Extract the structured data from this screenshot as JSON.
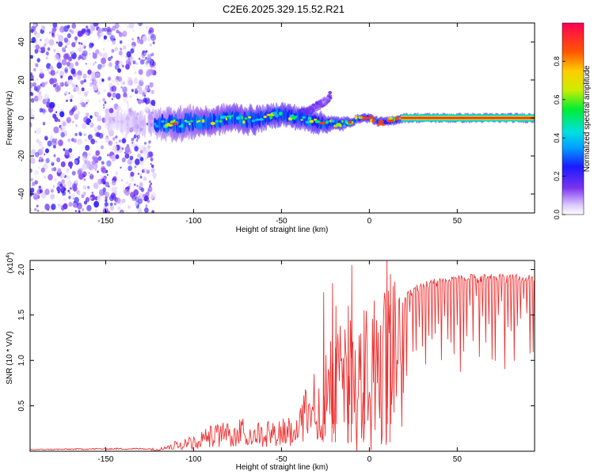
{
  "title": "C2E6.2025.329.15.52.R21",
  "chart_data": [
    {
      "type": "heatmap",
      "title": "C2E6.2025.329.15.52.R21",
      "xlabel": "Height of straight line (km)",
      "ylabel": "Frequency (Hz)",
      "xlim": [
        -193,
        94
      ],
      "ylim": [
        -50,
        50
      ],
      "x_ticks": [
        -150,
        -100,
        -50,
        0,
        50
      ],
      "x_tick_labels": [
        "-150",
        "-100",
        "-50",
        "0",
        "50"
      ],
      "y_ticks": [
        -40,
        -20,
        0,
        20,
        40
      ],
      "y_tick_labels": [
        "-40",
        "-20",
        "0",
        "20",
        "40"
      ],
      "noise_region_x": [
        -193,
        -122
      ],
      "trace": {
        "x": [
          -150,
          -140,
          -130,
          -122,
          -115,
          -110,
          -105,
          -100,
          -95,
          -90,
          -85,
          -80,
          -75,
          -70,
          -65,
          -60,
          -55,
          -50,
          -45,
          -40,
          -35,
          -30,
          -25,
          -20,
          -15,
          -10,
          -5,
          0,
          5,
          10,
          15,
          20,
          30,
          40,
          50,
          60,
          70,
          80,
          94
        ],
        "freq": [
          -2,
          -2,
          -3,
          -3,
          -3,
          -3,
          -3,
          -2,
          -2,
          -2,
          -1,
          0,
          0,
          -1,
          -1,
          0,
          1,
          2,
          1,
          0,
          -1,
          -2,
          -3,
          -3,
          -3,
          -2,
          0,
          0,
          -2,
          -2,
          -1,
          0,
          0,
          0,
          0,
          0,
          0,
          0,
          0
        ],
        "halfwidth": [
          4,
          5,
          5,
          6,
          7,
          7,
          7,
          7,
          6,
          6,
          6,
          6,
          6,
          6,
          6,
          5,
          5,
          5,
          5,
          5,
          5,
          5,
          4,
          3,
          3,
          2,
          2,
          2,
          2,
          2,
          2,
          2,
          2,
          2,
          2,
          2,
          2,
          2,
          2
        ],
        "amplitude": [
          0.1,
          0.15,
          0.2,
          0.25,
          0.3,
          0.35,
          0.35,
          0.35,
          0.4,
          0.4,
          0.4,
          0.45,
          0.45,
          0.45,
          0.5,
          0.5,
          0.55,
          0.55,
          0.55,
          0.5,
          0.5,
          0.55,
          0.6,
          0.6,
          0.7,
          0.7,
          0.75,
          0.8,
          0.85,
          0.85,
          0.9,
          0.95,
          0.95,
          0.95,
          0.95,
          0.95,
          0.95,
          0.95,
          0.95
        ]
      },
      "side_lobe": {
        "x": [
          -40,
          -32,
          -25,
          -22
        ],
        "freq": [
          2,
          5,
          9,
          12
        ]
      },
      "colorbar": {
        "label": "Normalized spectral amplitude",
        "range": [
          0,
          1
        ],
        "ticks": [
          0.0,
          0.2,
          0.4,
          0.6,
          0.8
        ],
        "tick_labels": [
          "0.0",
          "0.2",
          "0.4",
          "0.6",
          "0.8"
        ]
      }
    },
    {
      "type": "line",
      "xlabel": "Height of straight line (km)",
      "ylabel": "SNR (10 * V/V)",
      "scale_note": "(x10",
      "scale_exp": "4",
      "xlim": [
        -193,
        94
      ],
      "ylim": [
        0,
        2.1
      ],
      "x_ticks": [
        -150,
        -100,
        -50,
        0,
        50
      ],
      "x_tick_labels": [
        "-150",
        "-100",
        "-50",
        "0",
        "50"
      ],
      "y_ticks": [
        0.5,
        1.0,
        1.5,
        2.0
      ],
      "y_tick_labels": [
        "0.5",
        "1.0",
        "1.5",
        "2.0"
      ],
      "series": [
        {
          "name": "SNR",
          "color": "#ee3333",
          "envelope_x": [
            -193,
            -150,
            -125,
            -118,
            -110,
            -100,
            -90,
            -80,
            -70,
            -60,
            -50,
            -45,
            -40,
            -35,
            -30,
            -25,
            -20,
            -15,
            -10,
            -5,
            0,
            5,
            10,
            15,
            20,
            25,
            30,
            40,
            50,
            60,
            70,
            80,
            94
          ],
          "envelope_y": [
            0.02,
            0.03,
            0.03,
            0.05,
            0.1,
            0.15,
            0.25,
            0.3,
            0.32,
            0.3,
            0.33,
            0.35,
            0.45,
            0.65,
            0.9,
            1.0,
            1.15,
            1.25,
            1.35,
            1.45,
            1.5,
            1.55,
            1.6,
            1.65,
            1.72,
            1.8,
            1.85,
            1.9,
            1.92,
            1.93,
            1.93,
            1.93,
            1.93
          ],
          "peaks": [
            [
              -26,
              1.75
            ],
            [
              -21,
              1.85
            ],
            [
              -19,
              1.6
            ],
            [
              -12,
              1.6
            ],
            [
              -10,
              2.05
            ],
            [
              -3,
              1.55
            ],
            [
              10,
              2.15
            ],
            [
              12,
              1.95
            ]
          ]
        }
      ]
    }
  ]
}
